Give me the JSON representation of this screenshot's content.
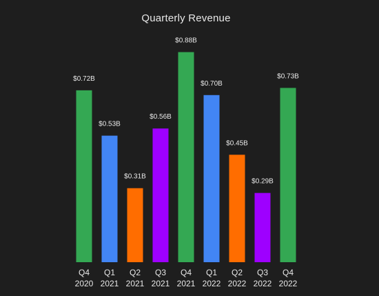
{
  "chart_data": {
    "type": "bar",
    "title": "Quarterly Revenue",
    "xlabel": "",
    "ylabel": "",
    "grid": false,
    "categories": [
      [
        "Q4",
        "2020"
      ],
      [
        "Q1",
        "2021"
      ],
      [
        "Q2",
        "2021"
      ],
      [
        "Q3",
        "2021"
      ],
      [
        "Q4",
        "2021"
      ],
      [
        "Q1",
        "2022"
      ],
      [
        "Q2",
        "2022"
      ],
      [
        "Q3",
        "2022"
      ],
      [
        "Q4",
        "2022"
      ]
    ],
    "values": [
      0.72,
      0.53,
      0.31,
      0.56,
      0.88,
      0.7,
      0.45,
      0.29,
      0.73
    ],
    "value_labels": [
      "$0.72B",
      "$0.53B",
      "$0.31B",
      "$0.56B",
      "$0.88B",
      "$0.70B",
      "$0.45B",
      "$0.29B",
      "$0.73B"
    ],
    "unit": "$B",
    "quarter_colors": {
      "Q1": "#4285f4",
      "Q2": "#ff6d00",
      "Q3": "#9e00ff",
      "Q4": "#34a853"
    }
  },
  "colors": {
    "background": "#1e1e1e",
    "text": "#e8e8e8"
  }
}
